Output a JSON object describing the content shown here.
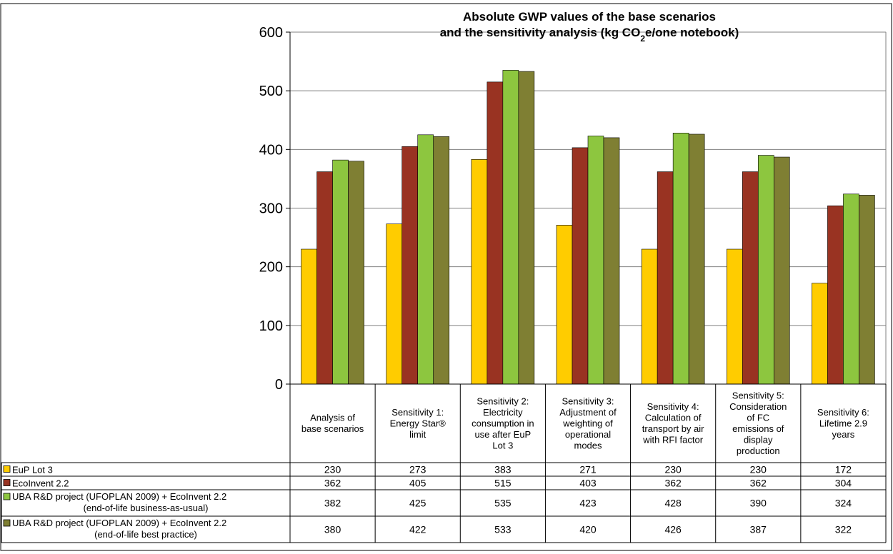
{
  "chart_data": {
    "type": "bar",
    "title_lines": [
      "Absolute GWP values of the base scenarios",
      "and the sensitivity analysis (kg CO",
      "2",
      "e/one notebook)"
    ],
    "categories": [
      [
        "Analysis of",
        "base scenarios"
      ],
      [
        "Sensitivity 1:",
        "Energy Star®",
        "limit"
      ],
      [
        "Sensitivity 2:",
        "Electricity",
        "consumption in",
        "use after EuP",
        "Lot 3"
      ],
      [
        "Sensitivity 3:",
        "Adjustment of",
        "weighting of",
        "operational",
        "modes"
      ],
      [
        "Sensitivity 4:",
        "Calculation of",
        "transport by air",
        "with RFI factor"
      ],
      [
        "Sensitivity 5:",
        "Consideration",
        "of FC",
        "emissions of",
        "display",
        "production"
      ],
      [
        "Sensitivity 6:",
        "Lifetime 2.9",
        "years"
      ]
    ],
    "series": [
      {
        "name": [
          "EuP Lot 3"
        ],
        "values": [
          230,
          273,
          383,
          271,
          230,
          230,
          172
        ],
        "color": "#FFCC00"
      },
      {
        "name": [
          "EcoInvent 2.2"
        ],
        "values": [
          362,
          405,
          515,
          403,
          362,
          362,
          304
        ],
        "color": "#993322"
      },
      {
        "name": [
          "UBA R&D project (UFOPLAN 2009) + EcoInvent 2.2",
          "(end-of-life business-as-usual)"
        ],
        "values": [
          382,
          425,
          535,
          423,
          428,
          390,
          324
        ],
        "color": "#8DC63F"
      },
      {
        "name": [
          "UBA R&D project (UFOPLAN 2009) + EcoInvent 2.2",
          "(end-of-life best practice)"
        ],
        "values": [
          380,
          422,
          533,
          420,
          426,
          387,
          322
        ],
        "color": "#7F7F33"
      }
    ],
    "y_ticks": [
      "0",
      "100",
      "200",
      "300",
      "400",
      "500",
      "600"
    ],
    "ylim": [
      0,
      600
    ],
    "grid": true,
    "legend": "data-table"
  }
}
